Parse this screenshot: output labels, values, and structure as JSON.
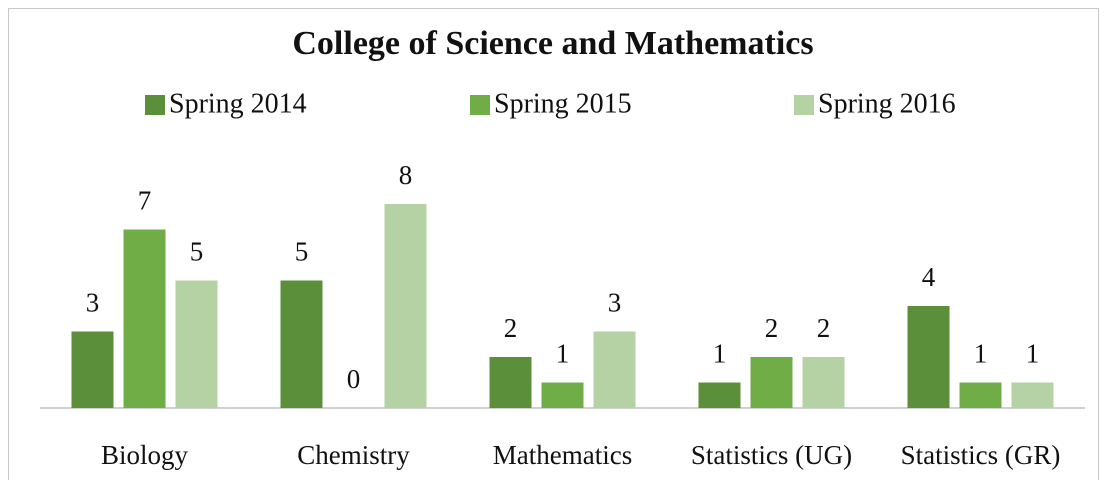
{
  "chart_data": {
    "type": "bar",
    "title": "College of Science and Mathematics",
    "categories": [
      "Biology",
      "Chemistry",
      "Mathematics",
      "Statistics (UG)",
      "Statistics (GR)"
    ],
    "series": [
      {
        "name": "Spring 2014",
        "color": "#5b8f3a",
        "values": [
          3,
          5,
          2,
          1,
          4
        ]
      },
      {
        "name": "Spring 2015",
        "color": "#70ad47",
        "values": [
          7,
          0,
          1,
          2,
          1
        ]
      },
      {
        "name": "Spring 2016",
        "color": "#b5d2a5",
        "values": [
          5,
          8,
          3,
          2,
          1
        ]
      }
    ],
    "legend": "top"
  }
}
